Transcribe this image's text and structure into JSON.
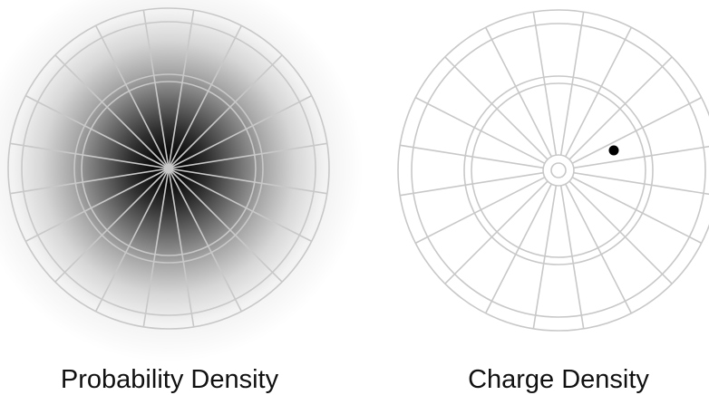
{
  "panels": [
    {
      "caption": "Probability Density",
      "rendering": "continuous-cloud",
      "cloud_color": "#000000"
    },
    {
      "caption": "Charge Density",
      "rendering": "point-particle",
      "particle_color": "#000000"
    }
  ],
  "target": {
    "rings": 4,
    "sectors": 20,
    "line_color": "#c8c8c8"
  }
}
